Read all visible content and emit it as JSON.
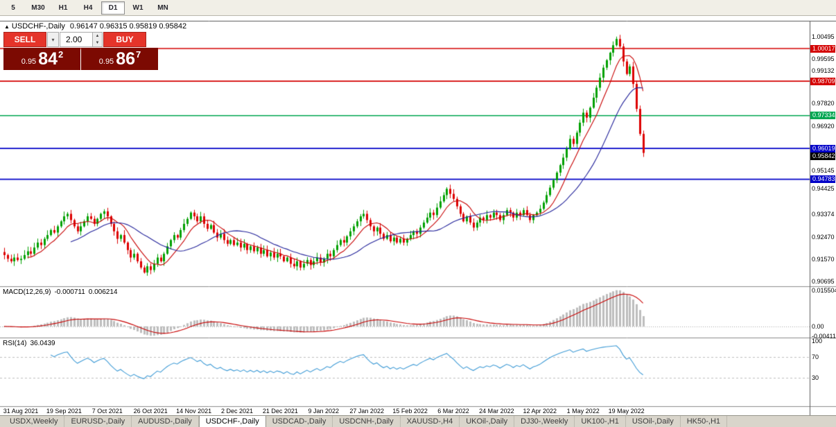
{
  "toolbar": {
    "periods": [
      {
        "label": "5",
        "active": false
      },
      {
        "label": "M30",
        "active": false
      },
      {
        "label": "H1",
        "active": false
      },
      {
        "label": "H4",
        "active": false
      },
      {
        "label": "D1",
        "active": true
      },
      {
        "label": "W1",
        "active": false
      },
      {
        "label": "MN",
        "active": false
      }
    ]
  },
  "chart": {
    "marker": "▲",
    "title": "USDCHF-,Daily",
    "ohlc": "0.96147 0.96315 0.95819 0.95842"
  },
  "trade_panel": {
    "sell_label": "SELL",
    "buy_label": "BUY",
    "volume": "2.00",
    "dropdown_icon": "▾",
    "spin_up_icon": "▲",
    "spin_down_icon": "▼",
    "sell_price": {
      "prefix": "0.95",
      "big": "84",
      "sup": "2"
    },
    "buy_price": {
      "prefix": "0.95",
      "big": "86",
      "sup": "7"
    }
  },
  "chart_data": {
    "type": "candlestick",
    "symbol": "USDCHF-",
    "timeframe": "Daily",
    "up_color": "#00A000",
    "down_color": "#DD0000",
    "price_axis": {
      "min": 0.905,
      "max": 1.011,
      "plain_labels": [
        1.00495,
        0.99595,
        0.99132,
        0.9782,
        0.9692,
        0.95145,
        0.94425,
        0.93374,
        0.9247,
        0.9157,
        0.90695
      ]
    },
    "levels": [
      {
        "price": 1.00017,
        "color": "#D40000"
      },
      {
        "price": 0.98709,
        "color": "#D40000"
      },
      {
        "price": 0.97334,
        "color": "#00A651"
      },
      {
        "price": 0.96019,
        "color": "#0000C8"
      },
      {
        "price": 0.94783,
        "color": "#0000C8"
      }
    ],
    "current_price": {
      "price": 0.95842,
      "color": "#000000"
    },
    "x_labels": [
      "31 Aug 2021",
      "19 Sep 2021",
      "7 Oct 2021",
      "26 Oct 2021",
      "14 Nov 2021",
      "2 Dec 2021",
      "21 Dec 2021",
      "9 Jan 2022",
      "27 Jan 2022",
      "15 Feb 2022",
      "6 Mar 2022",
      "24 Mar 2022",
      "12 Apr 2022",
      "1 May 2022",
      "19 May 2022"
    ],
    "x_label_bars": [
      5,
      18,
      31,
      44,
      57,
      70,
      83,
      96,
      109,
      122,
      135,
      148,
      161,
      174,
      187
    ],
    "closes": [
      0.9175,
      0.916,
      0.915,
      0.9165,
      0.9155,
      0.916,
      0.9175,
      0.919,
      0.918,
      0.9205,
      0.9225,
      0.9215,
      0.924,
      0.9255,
      0.9275,
      0.9265,
      0.929,
      0.931,
      0.933,
      0.934,
      0.9315,
      0.929,
      0.927,
      0.929,
      0.931,
      0.933,
      0.932,
      0.93,
      0.932,
      0.934,
      0.935,
      0.933,
      0.93,
      0.927,
      0.924,
      0.9255,
      0.9225,
      0.9195,
      0.9165,
      0.918,
      0.915,
      0.9125,
      0.9105,
      0.913,
      0.9115,
      0.914,
      0.9165,
      0.915,
      0.918,
      0.921,
      0.9235,
      0.9255,
      0.9245,
      0.9275,
      0.93,
      0.932,
      0.9345,
      0.933,
      0.931,
      0.933,
      0.93,
      0.928,
      0.9295,
      0.9265,
      0.9245,
      0.926,
      0.9235,
      0.922,
      0.9235,
      0.9215,
      0.9225,
      0.9205,
      0.922,
      0.9195,
      0.921,
      0.919,
      0.9205,
      0.918,
      0.9195,
      0.917,
      0.9185,
      0.9165,
      0.918,
      0.917,
      0.915,
      0.9165,
      0.914,
      0.913,
      0.915,
      0.9125,
      0.914,
      0.9155,
      0.9135,
      0.915,
      0.9165,
      0.9145,
      0.916,
      0.918,
      0.917,
      0.9195,
      0.9215,
      0.9235,
      0.9225,
      0.925,
      0.927,
      0.929,
      0.931,
      0.933,
      0.934,
      0.9315,
      0.929,
      0.927,
      0.9285,
      0.926,
      0.924,
      0.9255,
      0.923,
      0.9245,
      0.9225,
      0.924,
      0.9225,
      0.924,
      0.9255,
      0.927,
      0.926,
      0.9285,
      0.9305,
      0.9325,
      0.9345,
      0.9335,
      0.9365,
      0.939,
      0.9415,
      0.944,
      0.942,
      0.94,
      0.937,
      0.934,
      0.931,
      0.933,
      0.9305,
      0.9285,
      0.9305,
      0.9325,
      0.9315,
      0.9335,
      0.9325,
      0.9345,
      0.9335,
      0.9315,
      0.9335,
      0.9355,
      0.9345,
      0.9325,
      0.9345,
      0.9335,
      0.9355,
      0.9335,
      0.9315,
      0.9335,
      0.9345,
      0.936,
      0.9385,
      0.9415,
      0.9445,
      0.9475,
      0.9505,
      0.9535,
      0.9565,
      0.96,
      0.964,
      0.962,
      0.9665,
      0.9705,
      0.9745,
      0.9725,
      0.9765,
      0.9805,
      0.9845,
      0.9885,
      0.9925,
      0.9955,
      0.9985,
      1.0015,
      1.004,
      1.001,
      0.995,
      0.99,
      0.993,
      0.986,
      0.976,
      0.966,
      0.9584
    ],
    "ma_fast": {
      "period": 8,
      "color": "#C80000"
    },
    "ma_slow": {
      "period": 21,
      "color": "#24249B"
    },
    "macd": {
      "title": "MACD(12,26,9)",
      "value_main": "-0.000711",
      "value_signal": "0.006214",
      "axis_labels": [
        "0.015504",
        "0.00",
        "-0.004118"
      ],
      "axis_values": [
        0.015504,
        0,
        -0.004118
      ],
      "hist_color": "#BDBDBD",
      "signal_color": "#C80000",
      "range": [
        -0.0045,
        0.016
      ]
    },
    "rsi": {
      "title": "RSI(14)",
      "value": "36.0439",
      "period": 14,
      "axis_labels": [
        "100",
        "70",
        "30"
      ],
      "axis_values": [
        100,
        70,
        30
      ],
      "levels": [
        70,
        30
      ],
      "line_color": "#3E9BD6",
      "level_color": "#BEBEBE"
    }
  },
  "tabs": {
    "items": [
      "USDX,Weekly",
      "EURUSD-,Daily",
      "AUDUSD-,Daily",
      "USDCHF-,Daily",
      "USDCAD-,Daily",
      "USDCNH-,Daily",
      "XAUUSD-,H4",
      "UKOil-,Daily",
      "DJ30-,Weekly",
      "UK100-,H1",
      "USOil-,Daily",
      "HK50-,H1"
    ],
    "active_index": 3
  }
}
